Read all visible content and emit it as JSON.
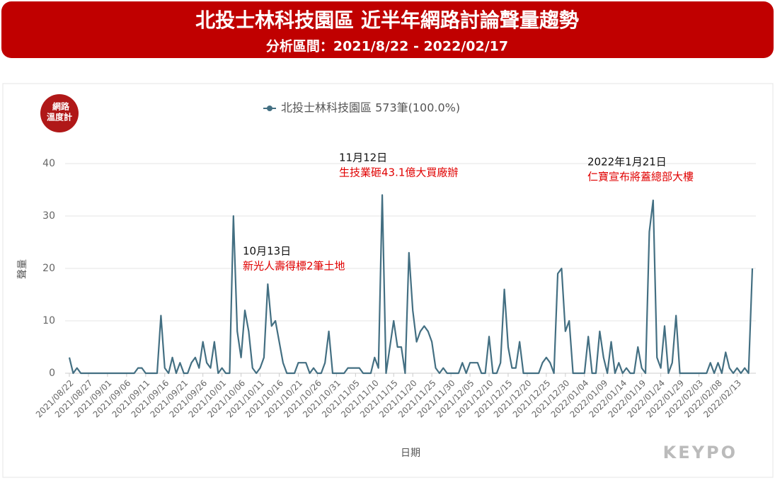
{
  "chart_data": {
    "type": "line",
    "title": "北投士林科技園區 近半年網路討論聲量趨勢",
    "subtitle": "分析區間：2021/8/22 - 2022/02/17",
    "badge": [
      "網路",
      "溫度計"
    ],
    "xlabel": "日期",
    "ylabel": "聲量",
    "brand": "KEYPO",
    "categories": [
      "2021/08/22",
      null,
      null,
      null,
      null,
      "2021/08/27",
      null,
      null,
      null,
      null,
      "2021/09/01",
      null,
      null,
      null,
      null,
      "2021/09/06",
      null,
      null,
      null,
      null,
      "2021/09/11",
      null,
      null,
      null,
      null,
      "2021/09/16",
      null,
      null,
      null,
      null,
      "2021/09/21",
      null,
      null,
      null,
      null,
      "2021/09/26",
      null,
      null,
      null,
      null,
      "2021/10/01",
      null,
      null,
      null,
      null,
      "2021/10/06",
      null,
      null,
      null,
      null,
      "2021/10/11",
      null,
      null,
      null,
      null,
      "2021/10/16",
      null,
      null,
      null,
      null,
      "2021/10/21",
      null,
      null,
      null,
      null,
      "2021/10/26",
      null,
      null,
      null,
      null,
      "2021/10/31",
      null,
      null,
      null,
      null,
      "2021/11/05",
      null,
      null,
      null,
      null,
      "2021/11/10",
      null,
      null,
      null,
      null,
      "2021/11/15",
      null,
      null,
      null,
      null,
      "2021/11/20",
      null,
      null,
      null,
      null,
      "2021/11/25",
      null,
      null,
      null,
      null,
      "2021/11/30",
      null,
      null,
      null,
      null,
      "2021/12/05",
      null,
      null,
      null,
      null,
      "2021/12/10",
      null,
      null,
      null,
      null,
      "2021/12/15",
      null,
      null,
      null,
      null,
      "2021/12/20",
      null,
      null,
      null,
      null,
      "2021/12/25",
      null,
      null,
      null,
      null,
      "2021/12/30",
      null,
      null,
      null,
      null,
      "2022/01/04",
      null,
      null,
      null,
      null,
      "2022/01/09",
      null,
      null,
      null,
      null,
      "2022/01/14",
      null,
      null,
      null,
      null,
      "2022/01/19",
      null,
      null,
      null,
      null,
      "2022/01/24",
      null,
      null,
      null,
      null,
      "2022/01/29",
      null,
      null,
      null,
      null,
      "2022/02/03",
      null,
      null,
      null,
      null,
      "2022/02/08",
      null,
      null,
      null,
      null,
      "2022/02/13",
      null,
      null,
      null,
      null
    ],
    "series": [
      {
        "name": "北投士林科技園區 573筆(100.0%)",
        "color": "#436f82",
        "values": [
          3,
          0,
          1,
          0,
          0,
          0,
          0,
          0,
          0,
          0,
          0,
          0,
          0,
          0,
          0,
          0,
          0,
          0,
          1,
          1,
          0,
          0,
          0,
          0,
          11,
          1,
          0,
          3,
          0,
          2,
          0,
          0,
          2,
          3,
          1,
          6,
          2,
          1,
          6,
          0,
          1,
          0,
          0,
          30,
          8,
          3,
          12,
          8,
          1,
          0,
          1,
          3,
          17,
          9,
          10,
          6,
          2,
          0,
          0,
          0,
          2,
          2,
          2,
          0,
          1,
          0,
          0,
          2,
          8,
          0,
          0,
          0,
          0,
          1,
          1,
          1,
          1,
          0,
          0,
          0,
          3,
          1,
          34,
          0,
          5,
          10,
          5,
          5,
          0,
          23,
          12,
          6,
          8,
          9,
          8,
          6,
          1,
          0,
          1,
          0,
          0,
          0,
          0,
          2,
          0,
          2,
          2,
          2,
          0,
          0,
          7,
          0,
          0,
          2,
          16,
          5,
          1,
          1,
          6,
          0,
          0,
          0,
          0,
          0,
          2,
          3,
          2,
          0,
          19,
          20,
          8,
          10,
          0,
          0,
          0,
          0,
          7,
          0,
          0,
          8,
          3,
          0,
          6,
          0,
          2,
          0,
          1,
          0,
          0,
          5,
          1,
          0,
          27,
          33,
          3,
          1,
          9,
          0,
          2,
          11,
          0,
          0,
          0,
          0,
          0,
          0,
          0,
          0,
          2,
          0,
          2,
          0,
          4,
          1,
          0,
          1,
          0,
          1,
          0,
          20
        ]
      }
    ],
    "ylim": [
      0,
      40
    ],
    "yticks": [
      0,
      10,
      20,
      30,
      40
    ],
    "grid": true,
    "annotations": [
      {
        "title": "10月13日",
        "text": "新光人壽得標2筆土地"
      },
      {
        "title": "11月12日",
        "text": "生技業砸43.1億大買廠辦"
      },
      {
        "title": "2022年1月21日",
        "text": "仁寶宣布將蓋總部大樓"
      }
    ]
  }
}
